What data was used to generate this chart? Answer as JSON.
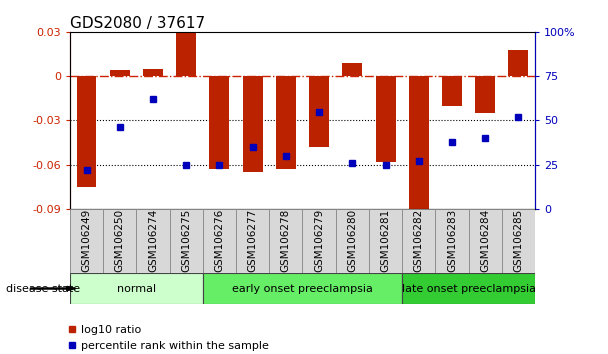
{
  "title": "GDS2080 / 37617",
  "samples": [
    "GSM106249",
    "GSM106250",
    "GSM106274",
    "GSM106275",
    "GSM106276",
    "GSM106277",
    "GSM106278",
    "GSM106279",
    "GSM106280",
    "GSM106281",
    "GSM106282",
    "GSM106283",
    "GSM106284",
    "GSM106285"
  ],
  "log10_ratio": [
    -0.075,
    0.004,
    0.005,
    0.03,
    -0.063,
    -0.065,
    -0.063,
    -0.048,
    0.009,
    -0.058,
    -0.09,
    -0.02,
    -0.025,
    0.018
  ],
  "percentile_rank": [
    22,
    46,
    62,
    25,
    25,
    35,
    30,
    55,
    26,
    25,
    27,
    38,
    40,
    52
  ],
  "groups": [
    {
      "label": "normal",
      "start": 0,
      "end": 3,
      "color": "#ccffcc"
    },
    {
      "label": "early onset preeclampsia",
      "start": 4,
      "end": 9,
      "color": "#66ee66"
    },
    {
      "label": "late onset preeclampsia",
      "start": 10,
      "end": 13,
      "color": "#33cc33"
    }
  ],
  "ylim_left": [
    -0.09,
    0.03
  ],
  "ylim_right": [
    0,
    100
  ],
  "yticks_left": [
    -0.09,
    -0.06,
    -0.03,
    0,
    0.03
  ],
  "yticks_right": [
    0,
    25,
    50,
    75,
    100
  ],
  "bar_color": "#bb2200",
  "dot_color": "#0000bb",
  "zero_line_color": "#cc2200",
  "grid_color": "#000000",
  "bg_color": "#ffffff",
  "disease_state_label": "disease state",
  "legend_bar": "log10 ratio",
  "legend_dot": "percentile rank within the sample",
  "title_fontsize": 11,
  "tick_fontsize": 7.5,
  "ytick_fontsize": 8
}
